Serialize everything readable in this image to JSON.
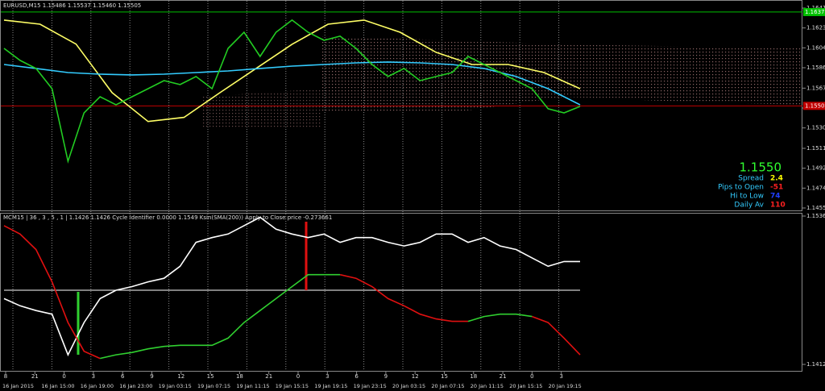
{
  "header": {
    "symbol_line": "EURUSD,M15  1.15486 1.15537 1.15460 1.15505"
  },
  "main_chart": {
    "type": "line",
    "ylim": [
      1.14555,
      1.16415
    ],
    "yticks": [
      1.16415,
      {
        "value": 1.1623,
        "label": "1.16230"
      },
      1.16045,
      {
        "value": 1.1586,
        "label": "1.15860"
      },
      {
        "value": 1.1567,
        "label": "1.15670"
      },
      1.15485,
      {
        "value": 1.153,
        "label": "1.15300"
      },
      {
        "value": 1.1511,
        "label": "1.15110"
      },
      1.14925,
      {
        "value": 1.1474,
        "label": "1.14740"
      },
      1.14555
    ],
    "hlines": [
      {
        "value": 1.16378,
        "label": "1.16378",
        "color": "#00c000"
      },
      {
        "value": 1.15505,
        "label": "1.15505",
        "color": "#c00000"
      }
    ],
    "series": [
      {
        "color": "#ffff66",
        "values": [
          1.16303,
          1.16265,
          1.1608,
          1.15628,
          1.1536,
          1.15398,
          1.15628,
          1.15853,
          1.16078,
          1.16265,
          1.16303,
          1.1619,
          1.16003,
          1.1589,
          1.1589,
          1.15815,
          1.15665
        ]
      },
      {
        "color": "#33ccff",
        "values": [
          1.1589,
          1.15853,
          1.15815,
          1.158,
          1.15793,
          1.158,
          1.15815,
          1.1583,
          1.15853,
          1.15875,
          1.1589,
          1.15905,
          1.15913,
          1.15905,
          1.1589,
          1.15853,
          1.15778,
          1.15665,
          1.15515
        ]
      },
      {
        "color": "#22cc22",
        "values": [
          1.1604,
          1.15928,
          1.15853,
          1.15665,
          1.1499,
          1.1544,
          1.1559,
          1.15515,
          1.1559,
          1.15665,
          1.1574,
          1.15703,
          1.15778,
          1.15665,
          1.1604,
          1.1619,
          1.15965,
          1.1619,
          1.16303,
          1.1619,
          1.16115,
          1.16153,
          1.1604,
          1.1589,
          1.15778,
          1.15853,
          1.1574,
          1.15778,
          1.15815,
          1.15965,
          1.1589,
          1.15815,
          1.1574,
          1.15665,
          1.15478,
          1.1544,
          1.155
        ]
      }
    ]
  },
  "info_panel": {
    "price": "1.1550",
    "rows": [
      {
        "label": "Spread",
        "value": "2.4",
        "color": "#ffff00"
      },
      {
        "label": "Pips to Open",
        "value": "-51",
        "color": "#ff2020"
      },
      {
        "label": "Hi to Low",
        "value": "74",
        "color": "#2040ff"
      },
      {
        "label": "Daily Av",
        "value": "110",
        "color": "#ff2020"
      }
    ]
  },
  "sub_chart": {
    "type": "line",
    "title": "MCM15 | 36 , 3 , 5 , 1 | 1.1426 1.1426 Cycle Identifier 0.0000 1.1549 Ksin(SMA(200)) Apply to Close price -0.273661",
    "ylim": [
      1.1412,
      1.1536
    ],
    "yticks": [
      1.1536,
      1.1412
    ],
    "series": [
      {
        "color": "#ffffff",
        "values": [
          1.1467,
          1.1461,
          1.1457,
          1.1454,
          1.142,
          1.1447,
          1.1467,
          1.1474,
          1.1477,
          1.1481,
          1.1484,
          1.1494,
          1.1514,
          1.1518,
          1.1521,
          1.1528,
          1.1535,
          1.1525,
          1.1521,
          1.1518,
          1.1521,
          1.1514,
          1.1518,
          1.1518,
          1.1514,
          1.1511,
          1.1514,
          1.1521,
          1.1521,
          1.1514,
          1.1518,
          1.1511,
          1.1508,
          1.1501,
          1.1494,
          1.1498,
          1.1498
        ]
      },
      {
        "color": "#e01010",
        "values": [
          1.1528,
          1.1521,
          1.1508,
          1.1481,
          1.1447,
          1.1423,
          1.1417,
          null,
          null,
          null,
          null,
          null,
          null,
          null,
          null,
          null,
          null,
          null,
          null,
          null,
          null,
          1.1487,
          1.1484,
          1.1477,
          1.1467,
          1.1461,
          1.1454,
          1.145,
          1.1448,
          1.1448,
          null,
          null,
          null,
          1.1452,
          1.1447,
          1.1434,
          1.142
        ]
      },
      {
        "color": "#30d030",
        "values": [
          null,
          null,
          null,
          null,
          null,
          null,
          1.1417,
          1.142,
          1.1422,
          1.1425,
          1.1427,
          1.1428,
          1.1428,
          1.1428,
          1.1434,
          1.1447,
          1.1457,
          1.1467,
          1.1477,
          1.1487,
          1.1487,
          1.1487,
          null,
          null,
          null,
          null,
          null,
          null,
          null,
          1.1448,
          1.1452,
          1.1454,
          1.1454,
          1.1452,
          null,
          null,
          null
        ]
      }
    ]
  },
  "time_axis": {
    "hours": [
      "8",
      "21",
      "0",
      "3",
      "6",
      "9",
      "12",
      "15",
      "18",
      "21",
      "0",
      "3",
      "6",
      "9",
      "12",
      "15",
      "18",
      "21",
      "0",
      "3"
    ],
    "dates": [
      "16 Jan 2015",
      "16 Jan 15:00",
      "16 Jan 19:00",
      "16 Jan 23:00",
      "19 Jan 03:15",
      "19 Jan 07:15",
      "19 Jan 11:15",
      "19 Jan 15:15",
      "19 Jan 19:15",
      "19 Jan 23:15",
      "20 Jan 03:15",
      "20 Jan 07:15",
      "20 Jan 11:15",
      "20 Jan 15:15",
      "20 Jan 19:15"
    ]
  }
}
